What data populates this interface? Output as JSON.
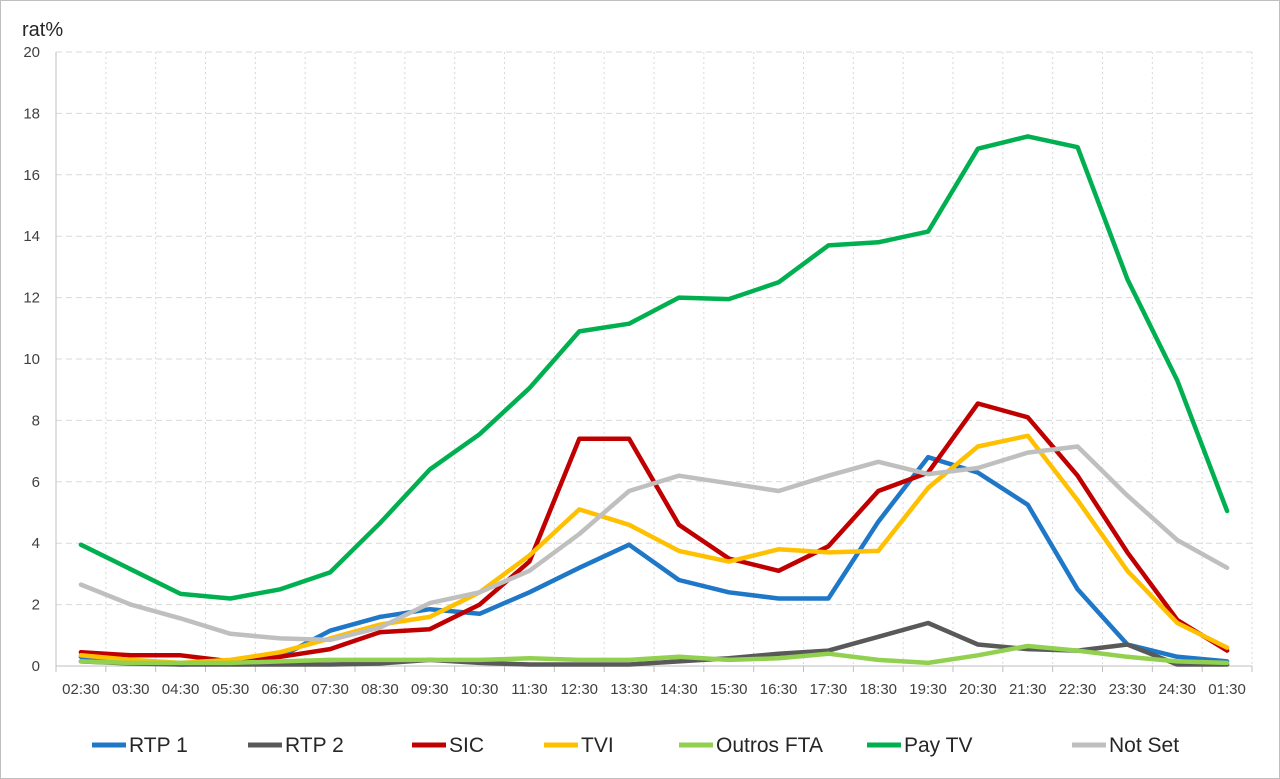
{
  "chart_data": {
    "type": "line",
    "ylabel": "rat%",
    "ylim": [
      0,
      20
    ],
    "yticks": [
      0,
      2,
      4,
      6,
      8,
      10,
      12,
      14,
      16,
      18,
      20
    ],
    "grid": true,
    "legend_position": "bottom",
    "categories": [
      "02:30",
      "03:30",
      "04:30",
      "05:30",
      "06:30",
      "07:30",
      "08:30",
      "09:30",
      "10:30",
      "11:30",
      "12:30",
      "13:30",
      "14:30",
      "15:30",
      "16:30",
      "17:30",
      "18:30",
      "19:30",
      "20:30",
      "21:30",
      "22:30",
      "23:30",
      "24:30",
      "01:30"
    ],
    "series": [
      {
        "name": "RTP 1",
        "color": "#1F77C8",
        "values": [
          0.3,
          0.15,
          0.05,
          0.1,
          0.3,
          1.15,
          1.6,
          1.85,
          1.7,
          2.4,
          3.2,
          3.95,
          2.8,
          2.4,
          2.2,
          2.2,
          4.7,
          6.8,
          6.3,
          5.25,
          2.5,
          0.7,
          0.3,
          0.15
        ]
      },
      {
        "name": "RTP 2",
        "color": "#595959",
        "values": [
          0.15,
          0.08,
          0.05,
          0.05,
          0.05,
          0.05,
          0.08,
          0.2,
          0.1,
          0.05,
          0.05,
          0.05,
          0.15,
          0.25,
          0.4,
          0.5,
          0.95,
          1.4,
          0.7,
          0.55,
          0.5,
          0.7,
          0.05,
          0.05
        ]
      },
      {
        "name": "SIC",
        "color": "#C00000",
        "values": [
          0.45,
          0.35,
          0.35,
          0.15,
          0.3,
          0.55,
          1.1,
          1.2,
          2.0,
          3.4,
          7.4,
          7.4,
          4.6,
          3.5,
          3.1,
          3.9,
          5.7,
          6.3,
          8.55,
          8.1,
          6.2,
          3.7,
          1.5,
          0.5
        ]
      },
      {
        "name": "TVI",
        "color": "#FFC000",
        "values": [
          0.35,
          0.2,
          0.1,
          0.2,
          0.45,
          0.9,
          1.35,
          1.6,
          2.4,
          3.6,
          5.1,
          4.6,
          3.75,
          3.4,
          3.8,
          3.7,
          3.75,
          5.8,
          7.15,
          7.5,
          5.4,
          3.1,
          1.4,
          0.6
        ]
      },
      {
        "name": "Outros FTA",
        "color": "#92D050",
        "values": [
          0.15,
          0.1,
          0.1,
          0.1,
          0.15,
          0.2,
          0.2,
          0.2,
          0.2,
          0.25,
          0.2,
          0.2,
          0.3,
          0.2,
          0.25,
          0.4,
          0.2,
          0.1,
          0.35,
          0.65,
          0.5,
          0.3,
          0.15,
          0.1
        ]
      },
      {
        "name": "Pay TV",
        "color": "#00B050",
        "values": [
          3.95,
          3.15,
          2.35,
          2.2,
          2.5,
          3.05,
          4.65,
          6.4,
          7.55,
          9.05,
          10.9,
          11.15,
          12.0,
          11.95,
          12.5,
          13.7,
          13.8,
          14.15,
          16.85,
          17.25,
          16.9,
          12.6,
          9.3,
          5.05
        ]
      },
      {
        "name": "Not Set",
        "color": "#BFBFBF",
        "values": [
          2.65,
          2.0,
          1.55,
          1.05,
          0.9,
          0.85,
          1.25,
          2.05,
          2.4,
          3.1,
          4.3,
          5.7,
          6.2,
          5.95,
          5.7,
          6.2,
          6.65,
          6.25,
          6.45,
          6.95,
          7.15,
          5.55,
          4.1,
          3.2
        ]
      }
    ]
  }
}
